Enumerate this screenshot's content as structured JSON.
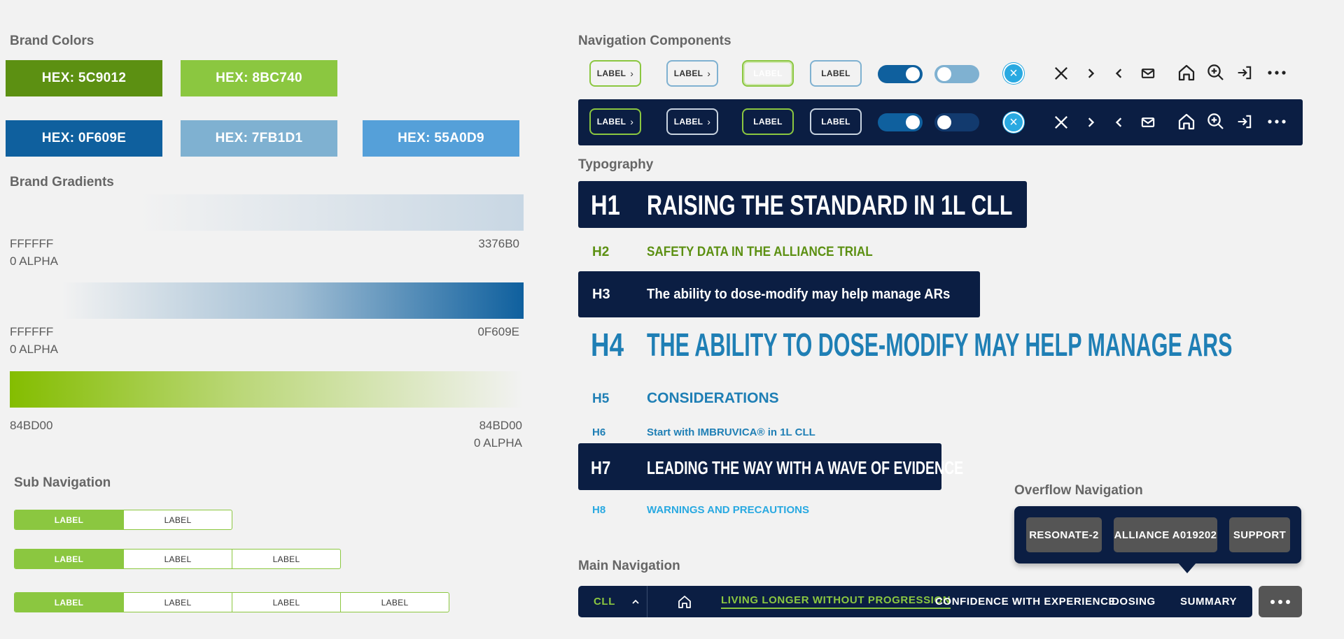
{
  "sections": {
    "brand_colors": "Brand Colors",
    "brand_gradients": "Brand Gradients",
    "sub_navigation": "Sub Navigation",
    "navigation_components": "Navigation Components",
    "typography": "Typography",
    "overflow_navigation": "Overflow Navigation",
    "main_navigation": "Main Navigation"
  },
  "colors": {
    "row1": [
      {
        "label": "HEX: 5C9012",
        "hex": "#5c9012"
      },
      {
        "label": "HEX: 8BC740",
        "hex": "#8bc740"
      }
    ],
    "row2": [
      {
        "label": "HEX: 0F609E",
        "hex": "#0f609e"
      },
      {
        "label": "HEX: 7FB1D1",
        "hex": "#7fb1d1"
      },
      {
        "label": "HEX: 55A0D9",
        "hex": "#55a0d9"
      }
    ]
  },
  "gradients": [
    {
      "from": "FFFFFF",
      "from_sub": "0 ALPHA",
      "to": "3376B0",
      "to_sub": ""
    },
    {
      "from": "FFFFFF",
      "from_sub": "0 ALPHA",
      "to": "0F609E",
      "to_sub": ""
    },
    {
      "from": "84BD00",
      "from_sub": "",
      "to": "84BD00",
      "to_sub": "0 ALPHA"
    }
  ],
  "subnav": {
    "label": "LABEL"
  },
  "navcomponents": {
    "label": "LABEL",
    "chevron": "›",
    "close": "×"
  },
  "typography": [
    {
      "tag": "H1",
      "text": "RAISING THE STANDARD IN 1L CLL"
    },
    {
      "tag": "H2",
      "text": "SAFETY DATA IN THE ALLIANCE TRIAL"
    },
    {
      "tag": "H3",
      "text": "The ability to dose-modify may help manage ARs"
    },
    {
      "tag": "H4",
      "text": "THE ABILITY TO DOSE-MODIFY MAY HELP MANAGE ARS"
    },
    {
      "tag": "H5",
      "text": "CONSIDERATIONS"
    },
    {
      "tag": "H6",
      "text": "Start with IMBRUVICA® in 1L CLL"
    },
    {
      "tag": "H7",
      "text": "LEADING THE WAY WITH A WAVE OF EVIDENCE"
    },
    {
      "tag": "H8",
      "text": "WARNINGS AND PRECAUTIONS"
    }
  ],
  "overflow": [
    "RESONATE-2",
    "ALLIANCE A019202",
    "SUPPORT"
  ],
  "mainnav": {
    "selector": "CLL",
    "caret": "^",
    "items": [
      "LIVING LONGER WITHOUT PROGRESSION",
      "CONFIDENCE WITH EXPERIENCE",
      "DOSING",
      "SUMMARY"
    ]
  },
  "icons": [
    "close-icon",
    "chevron-right-icon",
    "chevron-left-icon",
    "mail-icon",
    "home-icon",
    "zoom-in-icon",
    "exit-icon",
    "more-icon",
    "chevron-up-icon"
  ]
}
